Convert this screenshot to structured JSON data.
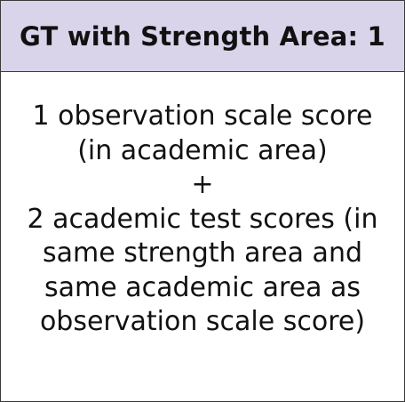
{
  "card": {
    "title": "GT with Strength Area: 1",
    "lines": [
      "1 observation scale score",
      "(in academic area)",
      "+",
      "2 academic test scores (in",
      "same strength area and",
      "same academic area as",
      "observation scale score)"
    ],
    "header_color": "#d9d4ea",
    "border_color": "#3a3a3a"
  }
}
